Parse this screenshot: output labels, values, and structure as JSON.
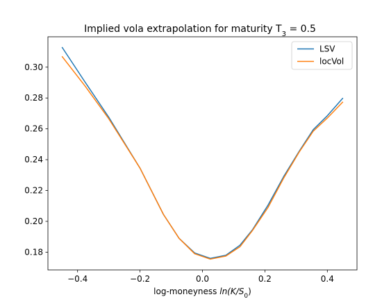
{
  "chart_data": {
    "type": "line",
    "title": {
      "main": "Implied vola extrapolation for maturity T",
      "subscript": "3",
      "suffix": " = 0.5"
    },
    "xlabel": {
      "prefix": "log-moneyness ",
      "italic": "ln(K/S",
      "subscript": "0",
      "suffix": ")"
    },
    "ylabel": "",
    "xlim": [
      -0.495,
      0.495
    ],
    "ylim": [
      0.1685,
      0.3197
    ],
    "x_ticks": [
      -0.4,
      -0.2,
      0.0,
      0.2,
      0.4
    ],
    "x_tick_labels": [
      "−0.4",
      "−0.2",
      "0.0",
      "0.2",
      "0.4"
    ],
    "y_ticks": [
      0.18,
      0.2,
      0.22,
      0.24,
      0.26,
      0.28,
      0.3
    ],
    "y_tick_labels": [
      "0.18",
      "0.20",
      "0.22",
      "0.24",
      "0.26",
      "0.28",
      "0.30"
    ],
    "grid": false,
    "legend_position": "top-right",
    "x": [
      -0.45,
      -0.375,
      -0.3,
      -0.2,
      -0.125,
      -0.075,
      -0.025,
      0.025,
      0.075,
      0.12,
      0.16,
      0.21,
      0.26,
      0.31,
      0.355,
      0.4,
      0.45
    ],
    "series": [
      {
        "name": "LSV",
        "color": "#1f77b4",
        "values": [
          0.313,
          0.29,
          0.2675,
          0.2345,
          0.2045,
          0.189,
          0.1795,
          0.176,
          0.178,
          0.1845,
          0.1945,
          0.2105,
          0.229,
          0.2455,
          0.2595,
          0.2685,
          0.28
        ]
      },
      {
        "name": "locVol",
        "color": "#ff7f0e",
        "values": [
          0.307,
          0.2875,
          0.2665,
          0.2345,
          0.2045,
          0.189,
          0.179,
          0.1755,
          0.1775,
          0.1835,
          0.194,
          0.209,
          0.228,
          0.245,
          0.2585,
          0.267,
          0.2775
        ]
      }
    ]
  }
}
